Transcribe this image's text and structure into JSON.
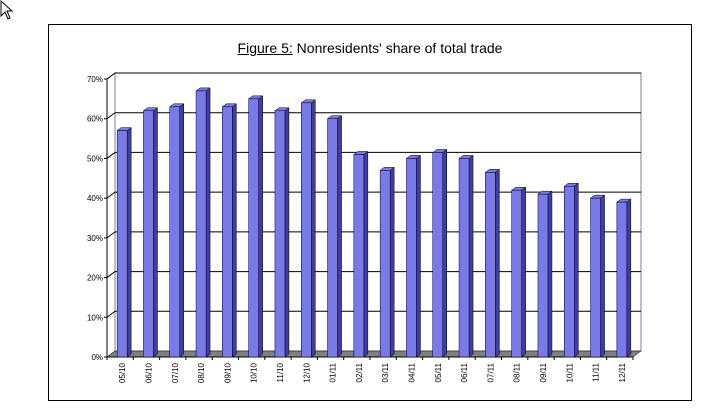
{
  "chart_data": {
    "type": "bar",
    "title_prefix": "Figure 5:",
    "title_text": " Nonresidents' share of total trade",
    "categories": [
      "05/10",
      "06/10",
      "07/10",
      "08/10",
      "09/10",
      "10/10",
      "11/10",
      "12/10",
      "01/11",
      "02/11",
      "03/11",
      "04/11",
      "05/11",
      "06/11",
      "07/11",
      "08/11",
      "09/11",
      "10/11",
      "11/11",
      "12/11"
    ],
    "values": [
      57,
      62,
      63,
      67,
      63,
      65,
      62,
      64,
      60,
      51,
      47,
      50,
      51.5,
      50,
      46.5,
      42,
      41,
      43,
      40,
      39
    ],
    "ylim": [
      0,
      70
    ],
    "yticks": [
      "0%",
      "10%",
      "20%",
      "30%",
      "40%",
      "50%",
      "60%",
      "70%"
    ],
    "grid": true,
    "bar_color": "#7a7ae6",
    "bar_side_color": "#3c3cb0",
    "floor_color": "#808080"
  }
}
